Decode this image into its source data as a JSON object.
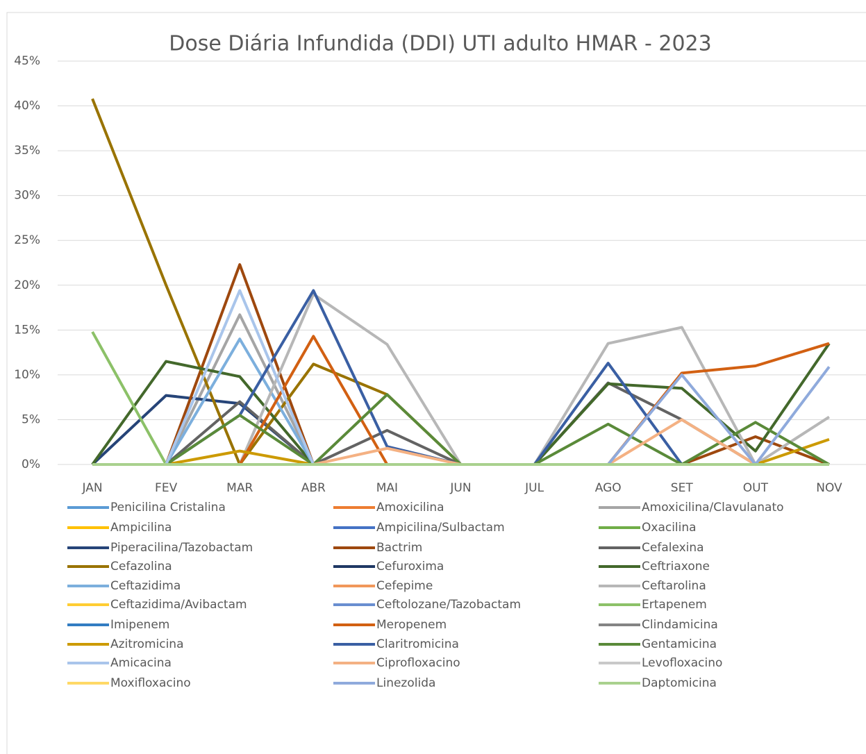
{
  "chart_data": {
    "type": "line",
    "title": "Dose Diária Infundida (DDI) UTI adulto HMAR - 2023",
    "categories": [
      "JAN",
      "FEV",
      "MAR",
      "ABR",
      "MAI",
      "JUN",
      "JUL",
      "AGO",
      "SET",
      "OUT",
      "NOV"
    ],
    "ylim": [
      0,
      45
    ],
    "yticks": [
      {
        "value": 0,
        "label": "0%"
      },
      {
        "value": 5,
        "label": "5%"
      },
      {
        "value": 10,
        "label": "10%"
      },
      {
        "value": 15,
        "label": "15%"
      },
      {
        "value": 20,
        "label": "20%"
      },
      {
        "value": 25,
        "label": "25%"
      },
      {
        "value": 30,
        "label": "30%"
      },
      {
        "value": 35,
        "label": "35%"
      },
      {
        "value": 40,
        "label": "40%"
      },
      {
        "value": 45,
        "label": "45%"
      }
    ],
    "grid": true,
    "legend": "bottom",
    "series": [
      {
        "name": "Penicilina Cristalina",
        "color": "#5b9bd5",
        "values": [
          0,
          0,
          0,
          0,
          0,
          0,
          0,
          0,
          0,
          0,
          0
        ]
      },
      {
        "name": "Amoxicilina",
        "color": "#ed7d31",
        "values": [
          0,
          0,
          0,
          0,
          0,
          0,
          0,
          0,
          0,
          0,
          0
        ]
      },
      {
        "name": "Amoxicilina/Clavulanato",
        "color": "#a5a5a5",
        "values": [
          0,
          0,
          16.7,
          0,
          0,
          0,
          0,
          0,
          0,
          0,
          0
        ]
      },
      {
        "name": "Ampicilina",
        "color": "#ffc000",
        "values": [
          0,
          0,
          0,
          0,
          0,
          0,
          0,
          0,
          0,
          0,
          0
        ]
      },
      {
        "name": "Ampicilina/Sulbactam",
        "color": "#4472c4",
        "values": [
          0,
          0,
          0,
          0,
          0,
          0,
          0,
          0,
          0,
          0,
          0
        ]
      },
      {
        "name": "Oxacilina",
        "color": "#70ad47",
        "values": [
          0,
          0,
          0,
          0,
          0,
          0,
          0,
          0,
          0,
          0,
          0
        ]
      },
      {
        "name": "Piperacilina/Tazobactam",
        "color": "#264478",
        "values": [
          0,
          7.7,
          6.8,
          0,
          0,
          0,
          0,
          0,
          0,
          0,
          0
        ]
      },
      {
        "name": "Bactrim",
        "color": "#9e480e",
        "values": [
          0,
          0,
          22.3,
          0,
          0,
          0,
          0,
          0,
          0,
          3.1,
          0
        ]
      },
      {
        "name": "Cefalexina",
        "color": "#636363",
        "values": [
          0,
          0,
          7,
          0,
          3.8,
          0,
          0,
          9.1,
          5,
          0,
          0
        ]
      },
      {
        "name": "Cefazolina",
        "color": "#997300",
        "values": [
          40.8,
          20,
          0,
          11.2,
          7.8,
          0,
          0,
          0,
          0,
          0,
          0
        ]
      },
      {
        "name": "Cefuroxima",
        "color": "#1f3864",
        "values": [
          0,
          0,
          0,
          0,
          0,
          0,
          0,
          0,
          0,
          0,
          0
        ]
      },
      {
        "name": "Ceftriaxone",
        "color": "#43682b",
        "values": [
          0,
          11.5,
          9.8,
          0,
          0,
          0,
          0,
          9,
          8.5,
          1.5,
          13.5
        ]
      },
      {
        "name": "Ceftazidima",
        "color": "#7cafdd",
        "values": [
          0,
          0,
          14,
          0,
          0,
          0,
          0,
          0,
          0,
          0,
          0
        ]
      },
      {
        "name": "Cefepime",
        "color": "#f1975a",
        "values": [
          0,
          0,
          0,
          0,
          0,
          0,
          0,
          0,
          0,
          0,
          0
        ]
      },
      {
        "name": "Ceftarolina",
        "color": "#b7b7b7",
        "values": [
          0,
          0,
          0,
          19,
          13.4,
          0,
          0,
          13.5,
          15.3,
          0,
          5.3
        ]
      },
      {
        "name": "Ceftazidima/Avibactam",
        "color": "#ffcd33",
        "values": [
          0,
          0,
          0,
          0,
          0,
          0,
          0,
          0,
          0,
          0,
          0
        ]
      },
      {
        "name": "Ceftolozane/Tazobactam",
        "color": "#698ed0",
        "values": [
          0,
          0,
          0,
          0,
          0,
          0,
          0,
          0,
          0,
          0,
          0
        ]
      },
      {
        "name": "Ertapenem",
        "color": "#8cc168",
        "values": [
          14.8,
          0,
          0,
          0,
          0,
          0,
          0,
          0,
          0,
          0,
          0
        ]
      },
      {
        "name": "Imipenem",
        "color": "#327dc2",
        "values": [
          0,
          0,
          0,
          0,
          0,
          0,
          0,
          0,
          0,
          0,
          0
        ]
      },
      {
        "name": "Meropenem",
        "color": "#d26012",
        "values": [
          0,
          0,
          0,
          14.3,
          0,
          0,
          0,
          0,
          10.2,
          11,
          13.5
        ]
      },
      {
        "name": "Clindamicina",
        "color": "#848484",
        "values": [
          0,
          0,
          0,
          0,
          0,
          0,
          0,
          0,
          0,
          0,
          0
        ]
      },
      {
        "name": "Azitromicina",
        "color": "#cc9a00",
        "values": [
          0,
          0,
          1.5,
          0,
          0,
          0,
          0,
          0,
          0,
          0,
          2.8
        ]
      },
      {
        "name": "Claritromicina",
        "color": "#3a5fa3",
        "values": [
          0,
          0,
          5.5,
          19.4,
          2,
          0,
          0,
          11.3,
          0,
          0,
          0
        ]
      },
      {
        "name": "Gentamicina",
        "color": "#5a8a39",
        "values": [
          0,
          0,
          5.5,
          0,
          7.8,
          0,
          0,
          4.5,
          0,
          4.7,
          0
        ]
      },
      {
        "name": "Amicacina",
        "color": "#a9c5eb",
        "values": [
          0,
          0,
          19.4,
          0,
          0,
          0,
          0,
          0,
          0,
          0,
          0
        ]
      },
      {
        "name": "Ciprofloxacino",
        "color": "#f4b183",
        "values": [
          0,
          0,
          0,
          0,
          1.8,
          0,
          0,
          0,
          5,
          0,
          0
        ]
      },
      {
        "name": "Levofloxacino",
        "color": "#c9c9c9",
        "values": [
          0,
          0,
          0,
          0,
          0,
          0,
          0,
          0,
          0,
          0,
          0
        ]
      },
      {
        "name": "Moxifloxacino",
        "color": "#ffd966",
        "values": [
          0,
          0,
          0,
          0,
          0,
          0,
          0,
          0,
          0,
          0,
          0
        ]
      },
      {
        "name": "Linezolida",
        "color": "#8faadc",
        "values": [
          0,
          0,
          0,
          0,
          0,
          0,
          0,
          0,
          10,
          0,
          10.9
        ]
      },
      {
        "name": "Daptomicina",
        "color": "#a9d18e",
        "values": [
          0,
          0,
          0,
          0,
          0,
          0,
          0,
          0,
          0,
          0,
          0
        ]
      }
    ]
  }
}
